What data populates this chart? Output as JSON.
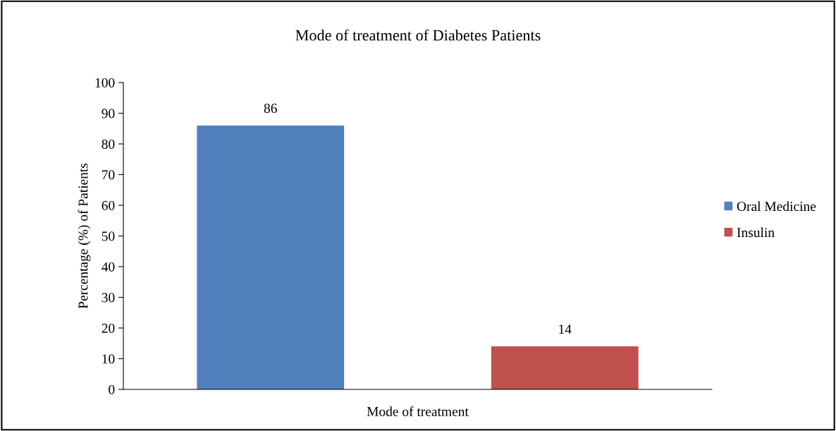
{
  "chart_data": {
    "type": "bar",
    "title": "Mode of treatment of Diabetes Patients",
    "xlabel": "Mode of treatment",
    "ylabel": "Percentage (%) of Patients",
    "categories": [
      null
    ],
    "series": [
      {
        "name": "Oral Medicine",
        "color": "#4f81bd",
        "values": [
          86
        ]
      },
      {
        "name": "Insulin",
        "color": "#c0504d",
        "values": [
          14
        ]
      }
    ],
    "ylim": [
      0,
      100
    ],
    "yticks": [
      0,
      10,
      20,
      30,
      40,
      50,
      60,
      70,
      80,
      90,
      100
    ],
    "data_labels": true,
    "legend": "right",
    "grid": false
  }
}
